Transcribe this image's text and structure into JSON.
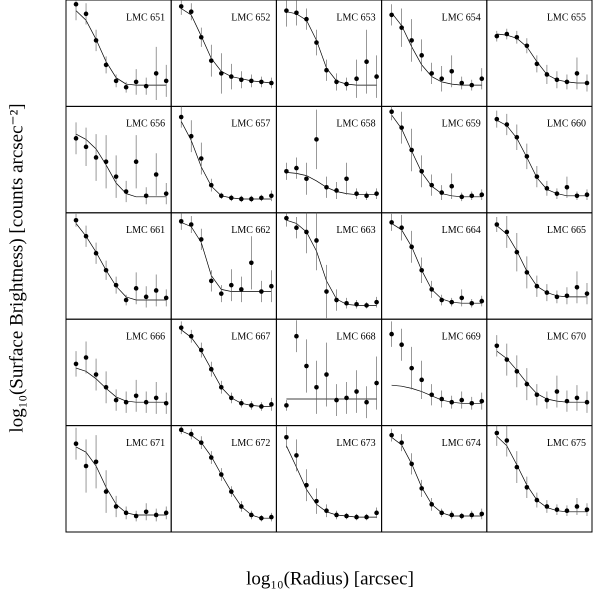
{
  "xlabel": "log₁₀(Radius) [arcsec]",
  "ylabel": "log₁₀(Surface Brightness) [counts arcsec⁻²]",
  "chart_data": [
    {
      "type": "scatter",
      "title": "LMC 651",
      "xlim": [
        0,
        2.1
      ],
      "ylim": [
        0,
        10
      ],
      "x": [
        0.2,
        0.4,
        0.6,
        0.8,
        1.0,
        1.2,
        1.4,
        1.6,
        1.8,
        2.0
      ],
      "values": [
        9.6,
        8.7,
        6.2,
        3.9,
        2.4,
        1.8,
        2.3,
        1.9,
        3.1,
        2.4
      ],
      "errors": [
        1.5,
        1.0,
        1.0,
        0.8,
        0.6,
        0.5,
        1.2,
        0.8,
        2.5,
        1.5
      ],
      "fit": [
        9.0,
        8.1,
        6.3,
        4.2,
        2.7,
        2.1,
        2.0,
        2.0,
        2.0,
        2.0
      ]
    },
    {
      "type": "scatter",
      "title": "LMC 652",
      "xlim": [
        0,
        2.1
      ],
      "ylim": [
        0,
        10
      ],
      "x": [
        0.2,
        0.4,
        0.6,
        0.8,
        1.0,
        1.2,
        1.4,
        1.6,
        1.8,
        2.0
      ],
      "values": [
        9.4,
        8.9,
        6.5,
        4.3,
        3.1,
        2.8,
        2.5,
        2.4,
        2.3,
        2.2
      ],
      "errors": [
        0.8,
        0.8,
        0.9,
        1.5,
        1.9,
        1.2,
        0.8,
        0.6,
        0.5,
        0.5
      ],
      "fit": [
        9.2,
        8.6,
        6.6,
        4.5,
        3.3,
        2.8,
        2.6,
        2.4,
        2.3,
        2.2
      ]
    },
    {
      "type": "scatter",
      "title": "LMC 653",
      "xlim": [
        0,
        2.1
      ],
      "ylim": [
        0,
        10
      ],
      "x": [
        0.2,
        0.4,
        0.6,
        0.8,
        1.0,
        1.2,
        1.4,
        1.6,
        1.8,
        2.0
      ],
      "values": [
        9.0,
        8.8,
        8.2,
        6.0,
        3.4,
        2.3,
        2.1,
        2.6,
        4.2,
        2.8
      ],
      "errors": [
        1.5,
        1.2,
        1.0,
        1.2,
        1.0,
        0.8,
        0.6,
        1.8,
        3.0,
        2.0
      ],
      "fit": [
        8.9,
        8.7,
        8.1,
        6.2,
        3.6,
        2.4,
        2.1,
        2.0,
        2.0,
        2.0
      ]
    },
    {
      "type": "scatter",
      "title": "LMC 654",
      "xlim": [
        0,
        2.1
      ],
      "ylim": [
        0,
        10
      ],
      "x": [
        0.2,
        0.4,
        0.6,
        0.8,
        1.0,
        1.2,
        1.4,
        1.6,
        1.8,
        2.0
      ],
      "values": [
        8.6,
        7.4,
        6.2,
        4.8,
        3.1,
        2.6,
        3.3,
        2.2,
        2.0,
        2.6
      ],
      "errors": [
        1.0,
        1.8,
        2.0,
        1.5,
        1.0,
        1.2,
        1.5,
        0.6,
        0.5,
        1.0
      ],
      "fit": [
        8.8,
        7.6,
        5.6,
        3.9,
        2.8,
        2.3,
        2.1,
        2.0,
        2.0,
        2.0
      ]
    },
    {
      "type": "scatter",
      "title": "LMC 655",
      "xlim": [
        0,
        2.1
      ],
      "ylim": [
        0,
        10
      ],
      "x": [
        0.2,
        0.4,
        0.6,
        0.8,
        1.0,
        1.2,
        1.4,
        1.6,
        1.8,
        2.0
      ],
      "values": [
        6.6,
        6.8,
        6.5,
        5.7,
        4.0,
        3.0,
        2.5,
        2.3,
        3.1,
        2.2
      ],
      "errors": [
        0.5,
        0.5,
        0.6,
        0.7,
        0.8,
        0.9,
        0.8,
        0.7,
        1.5,
        0.8
      ],
      "fit": [
        6.8,
        6.7,
        6.4,
        5.6,
        4.2,
        3.0,
        2.5,
        2.3,
        2.2,
        2.2
      ]
    },
    {
      "type": "scatter",
      "title": "LMC 656",
      "xlim": [
        0,
        2.1
      ],
      "ylim": [
        0,
        10
      ],
      "x": [
        0.2,
        0.4,
        0.6,
        0.8,
        1.0,
        1.2,
        1.4,
        1.6,
        1.8,
        2.0
      ],
      "values": [
        7.0,
        6.2,
        5.2,
        4.8,
        3.4,
        2.0,
        4.8,
        1.6,
        3.6,
        1.8
      ],
      "errors": [
        1.5,
        1.8,
        2.2,
        2.5,
        2.0,
        1.0,
        2.5,
        0.8,
        2.0,
        1.0
      ],
      "fit": [
        7.4,
        6.9,
        6.0,
        4.5,
        2.8,
        1.8,
        1.5,
        1.5,
        1.5,
        1.5
      ]
    },
    {
      "type": "scatter",
      "title": "LMC 657",
      "xlim": [
        0,
        2.1
      ],
      "ylim": [
        0,
        10
      ],
      "x": [
        0.2,
        0.4,
        0.6,
        0.8,
        1.0,
        1.2,
        1.4,
        1.6,
        1.8,
        2.0
      ],
      "values": [
        9.0,
        7.2,
        5.1,
        2.6,
        1.6,
        1.4,
        1.3,
        1.3,
        1.4,
        1.6
      ],
      "errors": [
        1.0,
        1.5,
        1.5,
        0.6,
        0.3,
        0.3,
        0.3,
        0.3,
        0.3,
        0.5
      ],
      "fit": [
        8.6,
        6.8,
        4.3,
        2.5,
        1.6,
        1.4,
        1.3,
        1.3,
        1.3,
        1.3
      ]
    },
    {
      "type": "scatter",
      "title": "LMC 658",
      "xlim": [
        0,
        2.1
      ],
      "ylim": [
        0,
        10
      ],
      "x": [
        0.2,
        0.4,
        0.6,
        0.8,
        1.0,
        1.2,
        1.4,
        1.6,
        1.8,
        2.0
      ],
      "values": [
        3.9,
        4.2,
        3.2,
        6.9,
        2.4,
        2.1,
        3.2,
        1.8,
        1.6,
        1.8
      ],
      "errors": [
        0.8,
        1.0,
        1.5,
        2.8,
        1.0,
        0.8,
        1.5,
        0.5,
        0.4,
        0.5
      ],
      "fit": [
        3.8,
        3.7,
        3.5,
        3.0,
        2.4,
        2.0,
        1.8,
        1.7,
        1.7,
        1.7
      ]
    },
    {
      "type": "scatter",
      "title": "LMC 659",
      "xlim": [
        0,
        2.1
      ],
      "ylim": [
        0,
        10
      ],
      "x": [
        0.2,
        0.4,
        0.6,
        0.8,
        1.0,
        1.2,
        1.4,
        1.6,
        1.8,
        2.0
      ],
      "values": [
        9.5,
        8.0,
        5.9,
        3.9,
        2.6,
        1.9,
        2.5,
        1.5,
        1.6,
        1.7
      ],
      "errors": [
        0.8,
        1.5,
        2.0,
        1.5,
        1.0,
        0.7,
        1.2,
        0.4,
        0.4,
        0.5
      ],
      "fit": [
        9.2,
        7.9,
        5.8,
        3.8,
        2.5,
        1.8,
        1.6,
        1.5,
        1.5,
        1.5
      ]
    },
    {
      "type": "scatter",
      "title": "LMC 660",
      "xlim": [
        0,
        2.1
      ],
      "ylim": [
        0,
        10
      ],
      "x": [
        0.2,
        0.4,
        0.6,
        0.8,
        1.0,
        1.2,
        1.4,
        1.6,
        1.8,
        2.0
      ],
      "values": [
        8.8,
        8.3,
        7.1,
        5.3,
        3.4,
        2.3,
        1.8,
        2.4,
        1.6,
        1.7
      ],
      "errors": [
        0.8,
        1.0,
        1.2,
        1.2,
        1.0,
        0.7,
        0.5,
        1.0,
        0.4,
        0.5
      ],
      "fit": [
        8.7,
        8.2,
        7.0,
        5.2,
        3.3,
        2.2,
        1.8,
        1.6,
        1.6,
        1.6
      ]
    },
    {
      "type": "scatter",
      "title": "LMC 661",
      "xlim": [
        0,
        2.1
      ],
      "ylim": [
        0,
        10
      ],
      "x": [
        0.2,
        0.4,
        0.6,
        0.8,
        1.0,
        1.2,
        1.4,
        1.6,
        1.8,
        2.0
      ],
      "values": [
        9.3,
        7.8,
        6.2,
        4.6,
        3.2,
        1.8,
        2.9,
        2.1,
        2.7,
        2.0
      ],
      "errors": [
        0.6,
        1.0,
        1.0,
        0.9,
        0.8,
        0.5,
        1.5,
        1.0,
        1.5,
        0.8
      ],
      "fit": [
        9.0,
        7.8,
        6.3,
        4.6,
        3.1,
        2.1,
        1.8,
        1.8,
        1.8,
        1.8
      ]
    },
    {
      "type": "scatter",
      "title": "LMC 662",
      "xlim": [
        0,
        2.1
      ],
      "ylim": [
        0,
        10
      ],
      "x": [
        0.2,
        0.4,
        0.6,
        0.8,
        1.0,
        1.2,
        1.4,
        1.6,
        1.8,
        2.0
      ],
      "values": [
        9.2,
        8.9,
        7.5,
        3.6,
        2.4,
        3.2,
        2.8,
        5.3,
        2.6,
        3.1
      ],
      "errors": [
        0.8,
        0.8,
        1.0,
        1.0,
        0.8,
        1.5,
        1.2,
        2.5,
        1.0,
        1.5
      ],
      "fit": [
        9.1,
        8.7,
        7.2,
        4.1,
        2.8,
        2.6,
        2.6,
        2.6,
        2.6,
        2.6
      ]
    },
    {
      "type": "scatter",
      "title": "LMC 663",
      "xlim": [
        0,
        2.1
      ],
      "ylim": [
        0,
        10
      ],
      "x": [
        0.2,
        0.4,
        0.6,
        0.8,
        1.0,
        1.2,
        1.4,
        1.6,
        1.8,
        2.0
      ],
      "values": [
        9.5,
        8.6,
        8.2,
        7.4,
        2.6,
        1.8,
        1.5,
        1.4,
        1.3,
        1.6
      ],
      "errors": [
        0.8,
        1.0,
        2.0,
        2.8,
        2.5,
        1.0,
        0.5,
        0.4,
        0.3,
        0.5
      ],
      "fit": [
        9.3,
        9.0,
        8.2,
        6.4,
        3.6,
        1.9,
        1.4,
        1.3,
        1.3,
        1.3
      ]
    },
    {
      "type": "scatter",
      "title": "LMC 664",
      "xlim": [
        0,
        2.1
      ],
      "ylim": [
        0,
        10
      ],
      "x": [
        0.2,
        0.4,
        0.6,
        0.8,
        1.0,
        1.2,
        1.4,
        1.6,
        1.8,
        2.0
      ],
      "values": [
        9.1,
        8.6,
        6.8,
        4.6,
        2.8,
        1.8,
        1.6,
        2.0,
        1.5,
        1.7
      ],
      "errors": [
        0.8,
        1.2,
        1.5,
        1.2,
        0.8,
        0.5,
        0.4,
        0.8,
        0.4,
        0.5
      ],
      "fit": [
        9.0,
        8.4,
        6.8,
        4.6,
        2.8,
        1.9,
        1.6,
        1.5,
        1.5,
        1.5
      ]
    },
    {
      "type": "scatter",
      "title": "LMC 665",
      "xlim": [
        0,
        2.1
      ],
      "ylim": [
        0,
        10
      ],
      "x": [
        0.2,
        0.4,
        0.6,
        0.8,
        1.0,
        1.2,
        1.4,
        1.6,
        1.8,
        2.0
      ],
      "values": [
        8.9,
        8.2,
        6.3,
        4.4,
        3.1,
        2.5,
        2.1,
        2.2,
        3.0,
        2.4
      ],
      "errors": [
        0.7,
        1.5,
        1.8,
        1.5,
        1.0,
        0.8,
        0.6,
        0.8,
        1.5,
        1.0
      ],
      "fit": [
        8.8,
        8.0,
        6.4,
        4.5,
        3.1,
        2.5,
        2.2,
        2.1,
        2.1,
        2.1
      ]
    },
    {
      "type": "scatter",
      "title": "LMC 666",
      "xlim": [
        0,
        2.1
      ],
      "ylim": [
        0,
        10
      ],
      "x": [
        0.2,
        0.4,
        0.6,
        0.8,
        1.0,
        1.2,
        1.4,
        1.6,
        1.8,
        2.0
      ],
      "values": [
        5.8,
        6.4,
        4.8,
        3.6,
        2.4,
        2.2,
        2.8,
        2.2,
        2.6,
        2.1
      ],
      "errors": [
        1.2,
        1.5,
        1.5,
        1.5,
        1.0,
        1.0,
        1.5,
        1.0,
        1.5,
        1.0
      ],
      "fit": [
        5.4,
        5.1,
        4.4,
        3.5,
        2.7,
        2.3,
        2.2,
        2.2,
        2.2,
        2.2
      ]
    },
    {
      "type": "scatter",
      "title": "LMC 667",
      "xlim": [
        0,
        2.1
      ],
      "ylim": [
        0,
        10
      ],
      "x": [
        0.2,
        0.4,
        0.6,
        0.8,
        1.0,
        1.2,
        1.4,
        1.6,
        1.8,
        2.0
      ],
      "values": [
        9.2,
        8.4,
        7.1,
        5.3,
        3.6,
        2.6,
        2.1,
        1.9,
        1.8,
        2.0
      ],
      "errors": [
        0.6,
        0.6,
        0.7,
        0.7,
        0.6,
        0.5,
        0.4,
        0.4,
        0.4,
        0.6
      ],
      "fit": [
        9.0,
        8.3,
        7.0,
        5.3,
        3.6,
        2.6,
        2.1,
        1.9,
        1.8,
        1.8
      ]
    },
    {
      "type": "scatter",
      "title": "LMC 668",
      "xlim": [
        0,
        2.1
      ],
      "ylim": [
        0,
        10
      ],
      "x": [
        0.2,
        0.4,
        0.6,
        0.8,
        1.0,
        1.2,
        1.4,
        1.6,
        1.8,
        2.0
      ],
      "values": [
        1.9,
        8.4,
        5.6,
        3.6,
        4.8,
        2.4,
        2.6,
        3.2,
        2.2,
        4.0
      ],
      "errors": [
        0.5,
        1.5,
        2.5,
        2.5,
        3.0,
        1.5,
        1.5,
        2.0,
        1.5,
        2.5
      ],
      "fit": [
        2.5,
        2.5,
        2.5,
        2.5,
        2.5,
        2.5,
        2.5,
        2.5,
        2.5,
        2.5
      ]
    },
    {
      "type": "scatter",
      "title": "LMC 669",
      "xlim": [
        0,
        2.1
      ],
      "ylim": [
        0,
        10
      ],
      "x": [
        0.2,
        0.4,
        0.6,
        0.8,
        1.0,
        1.2,
        1.4,
        1.6,
        1.8,
        2.0
      ],
      "values": [
        8.6,
        7.6,
        5.4,
        4.3,
        2.9,
        2.5,
        2.2,
        2.4,
        2.1,
        2.3
      ],
      "errors": [
        1.2,
        1.5,
        2.0,
        1.8,
        1.0,
        0.8,
        0.6,
        0.8,
        0.6,
        0.8
      ],
      "fit": [
        3.8,
        3.7,
        3.5,
        3.2,
        2.8,
        2.4,
        2.2,
        2.1,
        2.1,
        2.1
      ]
    },
    {
      "type": "scatter",
      "title": "LMC 670",
      "xlim": [
        0,
        2.1
      ],
      "ylim": [
        0,
        10
      ],
      "x": [
        0.2,
        0.4,
        0.6,
        0.8,
        1.0,
        1.2,
        1.4,
        1.6,
        1.8,
        2.0
      ],
      "values": [
        7.5,
        6.2,
        5.1,
        3.9,
        2.9,
        2.4,
        3.2,
        2.3,
        2.6,
        2.2
      ],
      "errors": [
        1.0,
        1.5,
        1.5,
        1.5,
        1.0,
        0.8,
        1.5,
        1.0,
        1.2,
        1.0
      ],
      "fit": [
        7.0,
        6.3,
        5.2,
        4.0,
        3.0,
        2.5,
        2.3,
        2.2,
        2.2,
        2.2
      ]
    },
    {
      "type": "scatter",
      "title": "LMC 671",
      "xlim": [
        0,
        2.1
      ],
      "ylim": [
        0,
        10
      ],
      "x": [
        0.2,
        0.4,
        0.6,
        0.8,
        1.0,
        1.2,
        1.4,
        1.6,
        1.8,
        2.0
      ],
      "values": [
        8.3,
        6.2,
        6.6,
        3.8,
        2.4,
        1.8,
        1.5,
        1.9,
        1.6,
        1.8
      ],
      "errors": [
        1.5,
        2.5,
        2.5,
        2.0,
        1.0,
        0.6,
        0.5,
        0.8,
        0.6,
        0.6
      ],
      "fit": [
        8.0,
        7.5,
        6.2,
        4.2,
        2.6,
        1.8,
        1.6,
        1.6,
        1.6,
        1.6
      ]
    },
    {
      "type": "scatter",
      "title": "LMC 672",
      "xlim": [
        0,
        2.1
      ],
      "ylim": [
        0,
        10
      ],
      "x": [
        0.2,
        0.4,
        0.6,
        0.8,
        1.0,
        1.2,
        1.4,
        1.6,
        1.8,
        2.0
      ],
      "values": [
        9.6,
        9.2,
        8.4,
        7.0,
        5.4,
        3.8,
        2.4,
        1.6,
        1.3,
        1.4
      ],
      "errors": [
        0.4,
        0.5,
        0.6,
        0.6,
        0.6,
        0.5,
        0.5,
        0.4,
        0.3,
        0.4
      ],
      "fit": [
        9.5,
        9.1,
        8.4,
        7.1,
        5.4,
        3.8,
        2.4,
        1.6,
        1.3,
        1.3
      ]
    },
    {
      "type": "scatter",
      "title": "LMC 673",
      "xlim": [
        0,
        2.1
      ],
      "ylim": [
        0,
        10
      ],
      "x": [
        0.2,
        0.4,
        0.6,
        0.8,
        1.0,
        1.2,
        1.4,
        1.6,
        1.8,
        2.0
      ],
      "values": [
        8.9,
        7.2,
        4.4,
        2.9,
        2.0,
        1.6,
        1.5,
        1.4,
        1.4,
        1.8
      ],
      "errors": [
        1.0,
        1.5,
        1.5,
        1.2,
        0.6,
        0.4,
        0.3,
        0.3,
        0.3,
        0.5
      ],
      "fit": [
        8.1,
        6.1,
        4.0,
        2.6,
        1.9,
        1.6,
        1.5,
        1.4,
        1.4,
        1.4
      ]
    },
    {
      "type": "scatter",
      "title": "LMC 674",
      "xlim": [
        0,
        2.1
      ],
      "ylim": [
        0,
        10
      ],
      "x": [
        0.2,
        0.4,
        0.6,
        0.8,
        1.0,
        1.2,
        1.4,
        1.6,
        1.8,
        2.0
      ],
      "values": [
        9.1,
        8.4,
        6.4,
        4.1,
        2.6,
        1.8,
        1.6,
        1.5,
        1.6,
        1.7
      ],
      "errors": [
        0.6,
        0.8,
        1.0,
        0.8,
        0.6,
        0.4,
        0.4,
        0.3,
        0.4,
        0.5
      ],
      "fit": [
        8.9,
        8.2,
        6.4,
        4.2,
        2.6,
        1.8,
        1.5,
        1.5,
        1.5,
        1.5
      ]
    },
    {
      "type": "scatter",
      "title": "LMC 675",
      "xlim": [
        0,
        2.1
      ],
      "ylim": [
        0,
        10
      ],
      "x": [
        0.2,
        0.4,
        0.6,
        0.8,
        1.0,
        1.2,
        1.4,
        1.6,
        1.8,
        2.0
      ],
      "values": [
        9.3,
        8.6,
        6.1,
        4.2,
        3.0,
        2.4,
        2.1,
        2.0,
        2.4,
        2.1
      ],
      "errors": [
        1.2,
        1.5,
        1.5,
        1.0,
        0.7,
        0.6,
        0.5,
        0.5,
        0.8,
        0.6
      ],
      "fit": [
        9.0,
        8.1,
        6.3,
        4.4,
        3.0,
        2.3,
        2.0,
        1.9,
        1.9,
        1.9
      ]
    }
  ]
}
